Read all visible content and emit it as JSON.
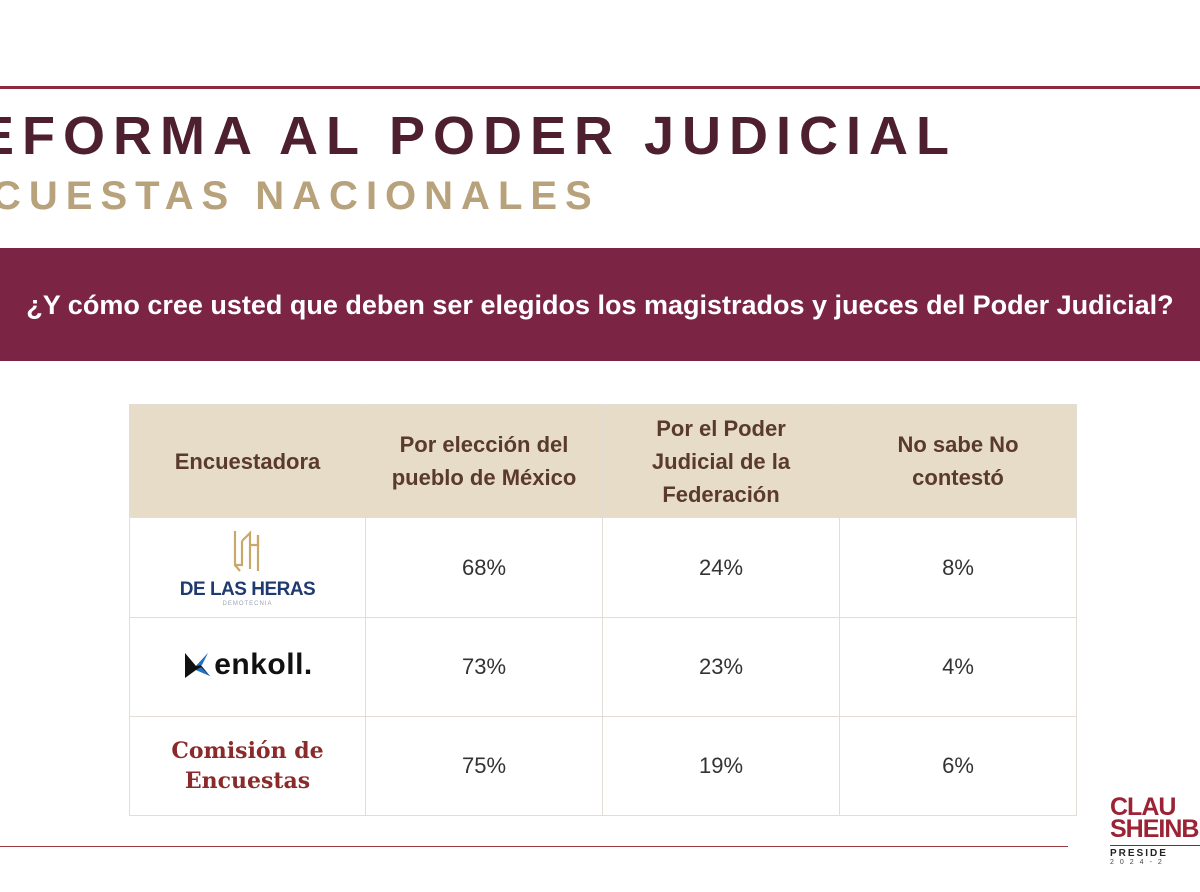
{
  "header": {
    "title": "EFORMA AL PODER JUDICIAL",
    "subtitle": "CUESTAS NACIONALES"
  },
  "question": "¿Y cómo cree usted que deben ser elegidos los magistrados y jueces del Poder Judicial?",
  "table": {
    "headers": [
      "Encuestadora",
      "Por elección del pueblo de México",
      "Por el Poder Judicial de la Federación",
      "No sabe No contestó"
    ],
    "rows": [
      {
        "pollster": "DE LAS HERAS",
        "pollster_tag": "DEMOTECNIA",
        "values": [
          "68%",
          "24%",
          "8%"
        ]
      },
      {
        "pollster": "enkoll.",
        "values": [
          "73%",
          "23%",
          "4%"
        ]
      },
      {
        "pollster": "Comisión de Encuestas",
        "values": [
          "75%",
          "19%",
          "6%"
        ]
      }
    ]
  },
  "brand": {
    "line1": "CLAU",
    "line2": "SHEINB",
    "line3": "PRESIDE",
    "line4": "2024-2"
  },
  "colors": {
    "title": "#4e1f2e",
    "subtitle": "#b8a27c",
    "band": "#7b2443",
    "table_header": "#e6dcc7",
    "brand_red": "#9b2335"
  }
}
